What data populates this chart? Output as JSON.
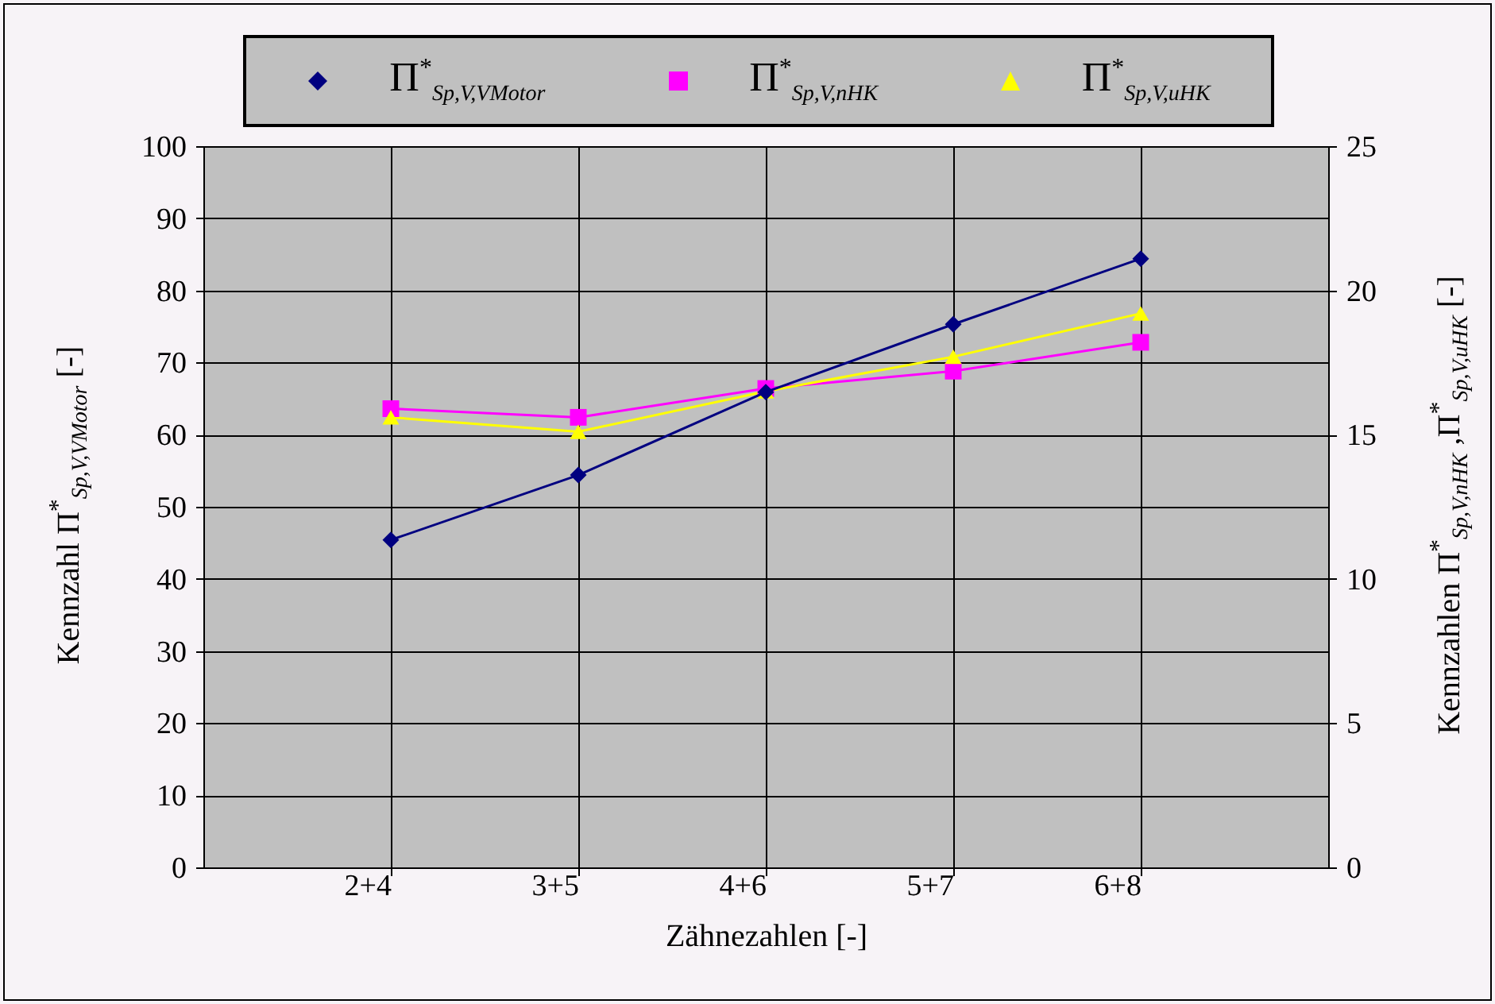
{
  "chart_data": {
    "type": "line",
    "xlabel": "Zähnezahlen [-]",
    "ylabel": "Kennzahl Π$^{*}$$_{Sp,V,V}$$_{Motor}$ [-]",
    "y2label": "Kennzahlen Π$^{*}$$_{Sp,V,n}$$_{HK}$ ,Π$^{*}$$_{Sp,V,u}$$_{HK}$ [-]",
    "categories": [
      "2+4",
      "3+5",
      "4+6",
      "5+7",
      "6+8"
    ],
    "series": [
      {
        "name": "Π$^{*}$$_{Sp,V,V}$$_{Motor}$",
        "color": "#000080",
        "marker": "diamond",
        "values": [
          45.4,
          54.4,
          65.9,
          75.3,
          84.4
        ]
      },
      {
        "name": "Π$^{*}$$_{Sp,V,n}$$_{HK}$",
        "color": "#ff00ff",
        "marker": "square",
        "axis": "y2",
        "values": [
          15.9,
          15.6,
          16.6,
          17.2,
          18.2
        ]
      },
      {
        "name": "Π$^{*}$$_{Sp,V,u}$$_{HK}$",
        "color": "#ffff00",
        "marker": "triangle",
        "axis": "y2",
        "values": [
          15.6,
          15.1,
          16.5,
          17.7,
          19.2
        ]
      }
    ],
    "ylim": [
      0,
      100
    ],
    "yticks": [
      0,
      10,
      20,
      30,
      40,
      50,
      60,
      70,
      80,
      90,
      100
    ],
    "y2lim": [
      0,
      25
    ],
    "y2ticks": [
      0,
      5,
      10,
      15,
      20,
      25
    ],
    "grid": true,
    "legend": "top"
  }
}
